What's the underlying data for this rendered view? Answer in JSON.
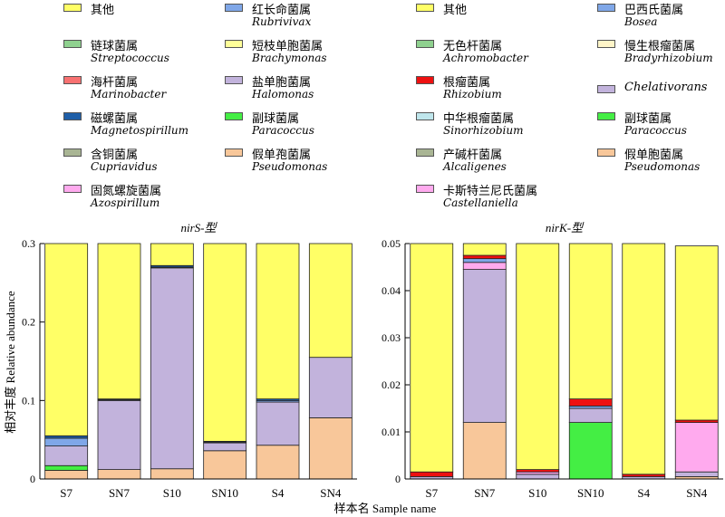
{
  "legend_left": [
    {
      "cn": "其他",
      "la": "",
      "color": "#FFFF66"
    },
    {
      "cn": "红长命菌属",
      "la": "Rubrivivax",
      "color": "#7FA7E8"
    },
    {
      "cn": "链球菌属",
      "la": "Streptococcus",
      "color": "#8FD18F"
    },
    {
      "cn": "短枝单胞菌属",
      "la": "Brachymonas",
      "color": "#FFFF99"
    },
    {
      "cn": "海杆菌属",
      "la": "Marinobacter",
      "color": "#F87171"
    },
    {
      "cn": "盐单胞菌属",
      "la": "Halomonas",
      "color": "#C2B3DC"
    },
    {
      "cn": "磁螺菌属",
      "la": "Magnetospirillum",
      "color": "#1F5FA8"
    },
    {
      "cn": "副球菌属",
      "la": "Paracoccus",
      "color": "#44EE44"
    },
    {
      "cn": "含铜菌属",
      "la": "Cupriavidus",
      "color": "#A9B594"
    },
    {
      "cn": "假单孢菌属",
      "la": "Pseudomonas",
      "color": "#F8C79A"
    },
    {
      "cn": "固氮螺旋菌属",
      "la": "Azospirillum",
      "color": "#FFAAEE"
    }
  ],
  "legend_right": [
    {
      "cn": "其他",
      "la": "",
      "color": "#FFFF66"
    },
    {
      "cn": "巴西氏菌属",
      "la": "Bosea",
      "color": "#7FA7E8"
    },
    {
      "cn": "无色杆菌属",
      "la": "Achromobacter",
      "color": "#8FD18F"
    },
    {
      "cn": "慢生根瘤菌属",
      "la": "Bradyrhizobium",
      "color": "#FFF5C8"
    },
    {
      "cn": "根瘤菌属",
      "la": "Rhizobium",
      "color": "#EE1111"
    },
    {
      "cn": "",
      "la": "Chelativorans",
      "color": "#C2B3DC"
    },
    {
      "cn": "中华根瘤菌属",
      "la": "Sinorhizobium",
      "color": "#BFE6EC"
    },
    {
      "cn": "副球菌属",
      "la": "Paracoccus",
      "color": "#44EE44"
    },
    {
      "cn": "产碱杆菌属",
      "la": "Alcaligenes",
      "color": "#A9B594"
    },
    {
      "cn": "假单胞菌属",
      "la": "Pseudomonas",
      "color": "#F8C79A"
    },
    {
      "cn": "卡斯特兰尼氏菌属",
      "la": "Castellaniella",
      "color": "#FFAAEE"
    }
  ],
  "ylabel": "相对丰度 Relative abundance",
  "xlabel": "样本名 Sample name",
  "chart_data": [
    {
      "type": "bar",
      "stacked": true,
      "title": "nirS-型",
      "categories": [
        "S7",
        "SN7",
        "S10",
        "SN10",
        "S4",
        "SN4"
      ],
      "ylim": [
        0,
        0.3
      ],
      "yticks": [
        "0",
        "0.1",
        "0.2",
        "0.3"
      ],
      "series": [
        {
          "name": "假单孢菌属 Pseudomonas",
          "color": "#F8C79A",
          "values": [
            0.011,
            0.012,
            0.013,
            0.036,
            0.043,
            0.078
          ]
        },
        {
          "name": "副球菌属 Paracoccus",
          "color": "#44EE44",
          "values": [
            0.006,
            0,
            0,
            0,
            0,
            0
          ]
        },
        {
          "name": "盐单胞菌属 Halomonas",
          "color": "#C2B3DC",
          "values": [
            0.025,
            0.088,
            0.256,
            0.01,
            0.055,
            0.077
          ]
        },
        {
          "name": "红长命菌属 Rubrivivax",
          "color": "#7FA7E8",
          "values": [
            0.01,
            0.001,
            0.001,
            0.001,
            0.002,
            0
          ]
        },
        {
          "name": "磁螺菌属 Magnetospirillum",
          "color": "#1F5FA8",
          "values": [
            0.003,
            0.001,
            0.002,
            0.001,
            0.002,
            0
          ]
        },
        {
          "name": "其他",
          "color": "#FFFF66",
          "values": [
            0.245,
            0.198,
            0.028,
            0.252,
            0.198,
            0.145
          ]
        }
      ]
    },
    {
      "type": "bar",
      "stacked": true,
      "title": "nirK-型",
      "categories": [
        "S7",
        "SN7",
        "S10",
        "SN10",
        "S4",
        "SN4"
      ],
      "ylim": [
        0,
        0.05
      ],
      "yticks": [
        "0",
        "0.01",
        "0.02",
        "0.03",
        "0.04",
        "0.05"
      ],
      "series": [
        {
          "name": "假单胞菌属 Pseudomonas",
          "color": "#F8C79A",
          "values": [
            0,
            0.012,
            0,
            0,
            0,
            0.0005
          ]
        },
        {
          "name": "副球菌属 Paracoccus",
          "color": "#44EE44",
          "values": [
            0,
            0,
            0,
            0.012,
            0,
            0
          ]
        },
        {
          "name": "Chelativorans",
          "color": "#C2B3DC",
          "values": [
            0.0005,
            0.0325,
            0.001,
            0.003,
            0.0005,
            0.001
          ]
        },
        {
          "name": "卡斯特兰尼氏菌属 Castellaniella",
          "color": "#FFAAEE",
          "values": [
            0,
            0.0015,
            0.0005,
            0,
            0,
            0.0105
          ]
        },
        {
          "name": "巴西氏菌属 Bosea",
          "color": "#7FA7E8",
          "values": [
            0,
            0.0008,
            0,
            0.0005,
            0,
            0
          ]
        },
        {
          "name": "根瘤菌属 Rhizobium",
          "color": "#EE1111",
          "values": [
            0.001,
            0.0007,
            0.0005,
            0.0015,
            0.0005,
            0.0005
          ]
        },
        {
          "name": "其他",
          "color": "#FFFF66",
          "values": [
            0.0485,
            0.0025,
            0.048,
            0.033,
            0.049,
            0.037
          ]
        }
      ]
    }
  ]
}
